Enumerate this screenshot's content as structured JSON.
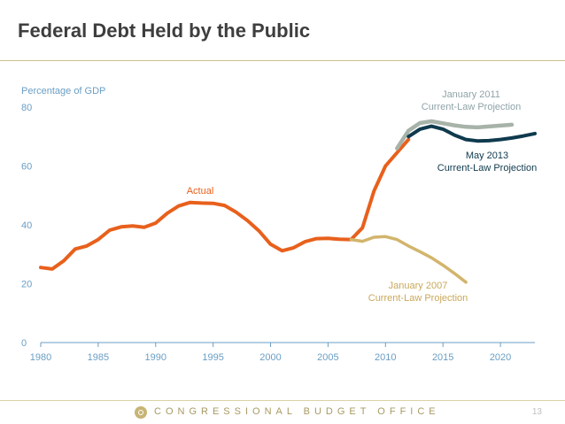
{
  "slide": {
    "title": "Federal Debt Held by the Public",
    "footer": "CONGRESSIONAL BUDGET OFFICE",
    "page_number": "13"
  },
  "chart_data": {
    "type": "line",
    "title": "",
    "xlabel": "",
    "ylabel": "Percentage of GDP",
    "xlim": [
      1980,
      2023
    ],
    "ylim": [
      0,
      80
    ],
    "x_ticks": [
      1980,
      1985,
      1990,
      1995,
      2000,
      2005,
      2010,
      2015,
      2020
    ],
    "y_ticks": [
      0,
      20,
      40,
      60,
      80
    ],
    "grid": false,
    "legend": "none; series are labeled directly on the chart",
    "series": [
      {
        "name": "Actual",
        "color": "#e8601c",
        "points": [
          [
            1980,
            25.5
          ],
          [
            1981,
            25.0
          ],
          [
            1982,
            27.8
          ],
          [
            1983,
            31.8
          ],
          [
            1984,
            32.8
          ],
          [
            1985,
            35.0
          ],
          [
            1986,
            38.2
          ],
          [
            1987,
            39.3
          ],
          [
            1988,
            39.6
          ],
          [
            1989,
            39.2
          ],
          [
            1990,
            40.6
          ],
          [
            1991,
            43.9
          ],
          [
            1992,
            46.4
          ],
          [
            1993,
            47.6
          ],
          [
            1994,
            47.4
          ],
          [
            1995,
            47.3
          ],
          [
            1996,
            46.6
          ],
          [
            1997,
            44.3
          ],
          [
            1998,
            41.4
          ],
          [
            1999,
            37.9
          ],
          [
            2000,
            33.4
          ],
          [
            2001,
            31.2
          ],
          [
            2002,
            32.2
          ],
          [
            2003,
            34.3
          ],
          [
            2004,
            35.3
          ],
          [
            2005,
            35.4
          ],
          [
            2006,
            35.1
          ],
          [
            2007,
            35.0
          ],
          [
            2008,
            39.0
          ],
          [
            2009,
            51.5
          ],
          [
            2010,
            60.0
          ],
          [
            2011,
            64.5
          ],
          [
            2012,
            69.0
          ]
        ]
      },
      {
        "name": "January 2007 Current-Law Projection",
        "color": "#d2b56c",
        "points": [
          [
            2007,
            35.0
          ],
          [
            2008,
            34.4
          ],
          [
            2009,
            35.8
          ],
          [
            2010,
            36.0
          ],
          [
            2011,
            35.0
          ],
          [
            2012,
            32.8
          ],
          [
            2013,
            30.9
          ],
          [
            2014,
            28.8
          ],
          [
            2015,
            26.3
          ],
          [
            2016,
            23.5
          ],
          [
            2017,
            20.5
          ]
        ]
      },
      {
        "name": "January 2011 Current-Law Projection",
        "color": "#a7b3a9",
        "points": [
          [
            2011,
            66.0
          ],
          [
            2012,
            72.0
          ],
          [
            2013,
            74.6
          ],
          [
            2014,
            75.2
          ],
          [
            2015,
            74.5
          ],
          [
            2016,
            73.8
          ],
          [
            2017,
            73.3
          ],
          [
            2018,
            73.1
          ],
          [
            2019,
            73.4
          ],
          [
            2020,
            73.7
          ],
          [
            2021,
            74.0
          ]
        ]
      },
      {
        "name": "May 2013 Current-Law Projection",
        "color": "#0f3a4e",
        "points": [
          [
            2012,
            70.0
          ],
          [
            2013,
            72.5
          ],
          [
            2014,
            73.5
          ],
          [
            2015,
            72.5
          ],
          [
            2016,
            70.5
          ],
          [
            2017,
            69.0
          ],
          [
            2018,
            68.5
          ],
          [
            2019,
            68.6
          ],
          [
            2020,
            69.0
          ],
          [
            2021,
            69.5
          ],
          [
            2022,
            70.2
          ],
          [
            2023,
            71.0
          ]
        ]
      }
    ],
    "annotations": [
      {
        "lines": [
          "Actual"
        ],
        "color": "#e8601c"
      },
      {
        "lines": [
          "January 2011",
          "Current-Law Projection"
        ],
        "color": "#8fa3a8"
      },
      {
        "lines": [
          "May 2013",
          "Current-Law Projection"
        ],
        "color": "#0f3a4e"
      },
      {
        "lines": [
          "January 2007",
          "Current-Law Projection"
        ],
        "color": "#c9a85a"
      }
    ]
  }
}
